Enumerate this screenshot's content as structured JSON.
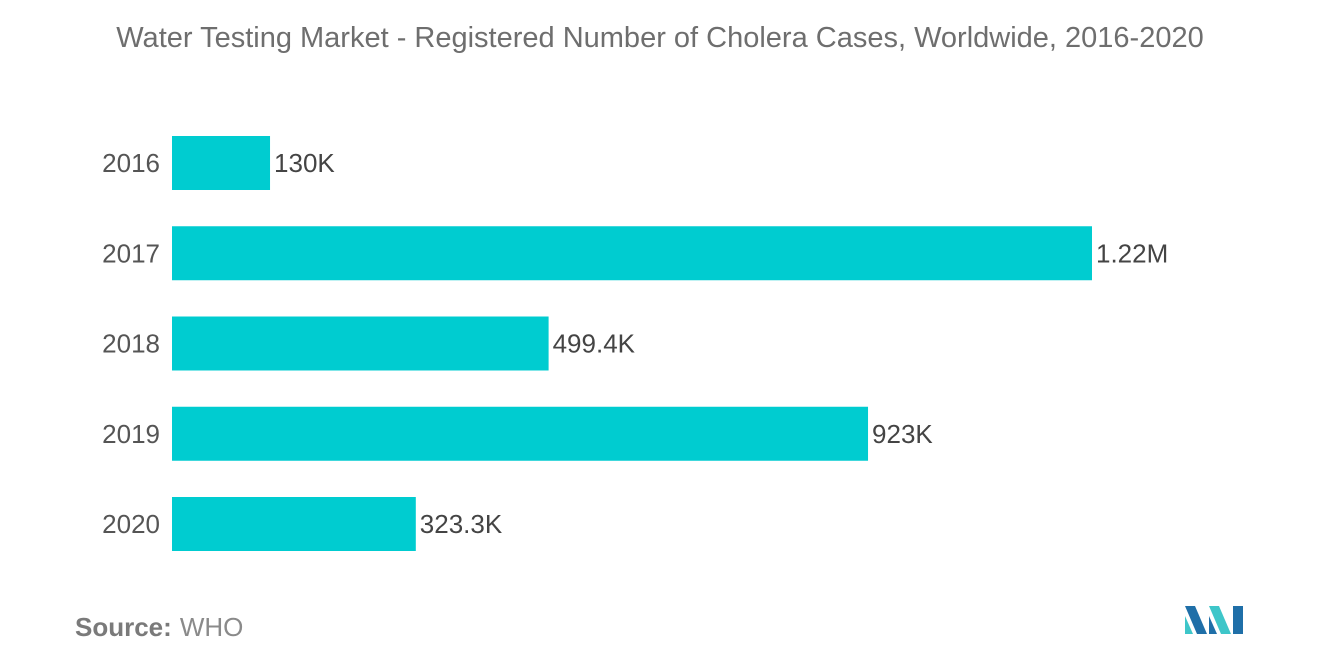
{
  "chart_data": {
    "type": "bar",
    "orientation": "horizontal",
    "title": "Water Testing Market - Registered Number of Cholera Cases, Worldwide, 2016-2020",
    "categories": [
      "2016",
      "2017",
      "2018",
      "2019",
      "2020"
    ],
    "values": [
      130000,
      1220000,
      499400,
      923000,
      323300
    ],
    "value_labels": [
      "130K",
      "1.22M",
      "499.4K",
      "923K",
      "323.3K"
    ],
    "xlabel": "",
    "ylabel": "",
    "xlim": [
      0,
      1220000
    ],
    "grid": false,
    "legend": "none",
    "bar_color": "#00ccd0"
  },
  "source": {
    "label": "Source:",
    "value": "WHO"
  },
  "logo": {
    "icon": "mordor-intelligence-logo-icon",
    "colors": [
      "#1f6fa8",
      "#3ec6c9"
    ]
  }
}
